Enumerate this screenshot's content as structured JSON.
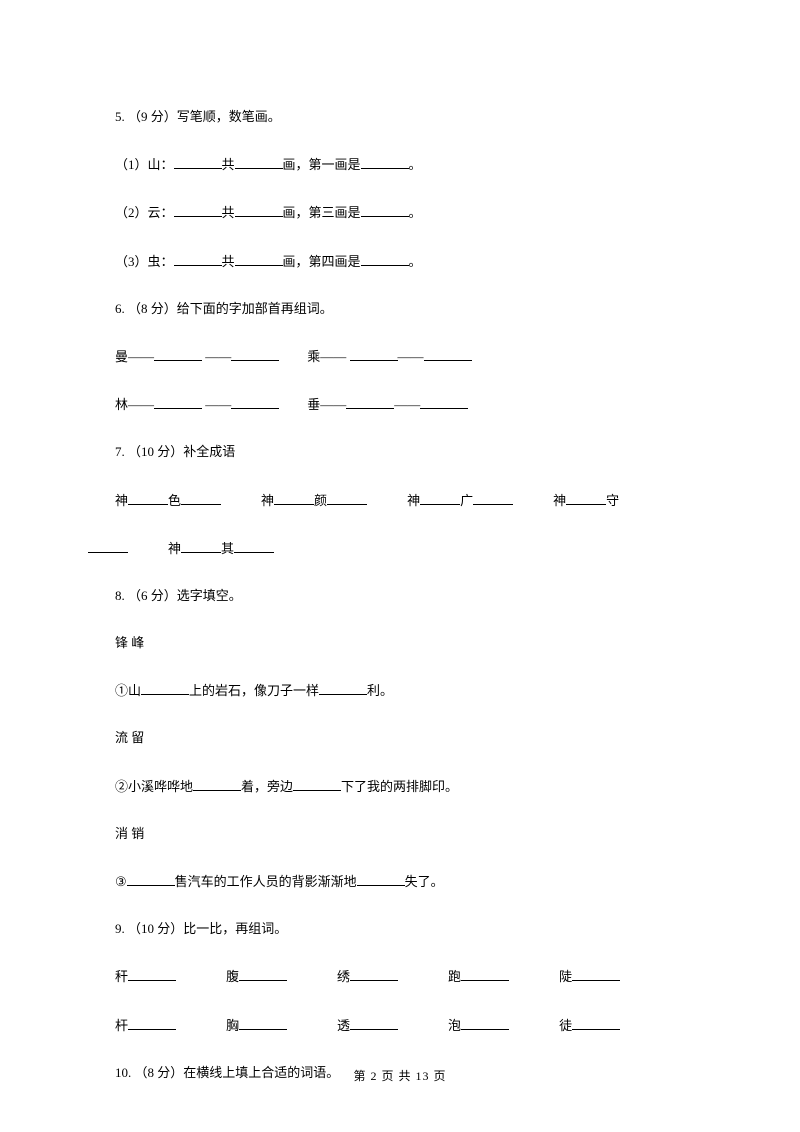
{
  "q5": {
    "text": "5.  （9 分）写笔顺，数笔画。",
    "items": [
      {
        "pre": "（1）山：",
        "mid": "共",
        "mid2": "画，第一画是",
        "end": "。"
      },
      {
        "pre": "（2）云：",
        "mid": "共",
        "mid2": "画，第三画是",
        "end": "。"
      },
      {
        "pre": "（3）虫：",
        "mid": "共",
        "mid2": "画，第四画是",
        "end": "。"
      }
    ]
  },
  "q6": {
    "text": "6.  （8 分）给下面的字加部首再组词。",
    "left1": "曼——",
    "right1": "乘——",
    "left2": "林——",
    "right2": "垂——",
    "sep": "——"
  },
  "q7": {
    "text": "7.  （10 分）补全成语",
    "w1a": "神",
    "w1b": "色",
    "w2a": "神",
    "w2b": "颜",
    "w3a": "神",
    "w3b": "广",
    "w4a": "神",
    "w4b": "守",
    "w5a": "神",
    "w5b": "其"
  },
  "q8": {
    "text": "8.  （6 分）选字填空。",
    "pair1": "锋        峰",
    "s1a": "①山",
    "s1b": "上的岩石，像刀子一样",
    "s1c": "利。",
    "pair2": "流        留",
    "s2a": "②小溪哗哗地",
    "s2b": "着，旁边",
    "s2c": "下了我的两排脚印。",
    "pair3": "消        销",
    "s3a": "③",
    "s3b": "售汽车的工作人员的背影渐渐地",
    "s3c": "失了。"
  },
  "q9": {
    "text": "9.  （10 分）比一比，再组词。",
    "r1": [
      "秆",
      "腹",
      "绣",
      "跑",
      "陡"
    ],
    "r2": [
      "杆",
      "胸",
      "透",
      "泡",
      "徒"
    ]
  },
  "q10": {
    "text": "10.  （8 分）在横线上填上合适的词语。"
  },
  "footer": "第 2 页 共 13 页"
}
